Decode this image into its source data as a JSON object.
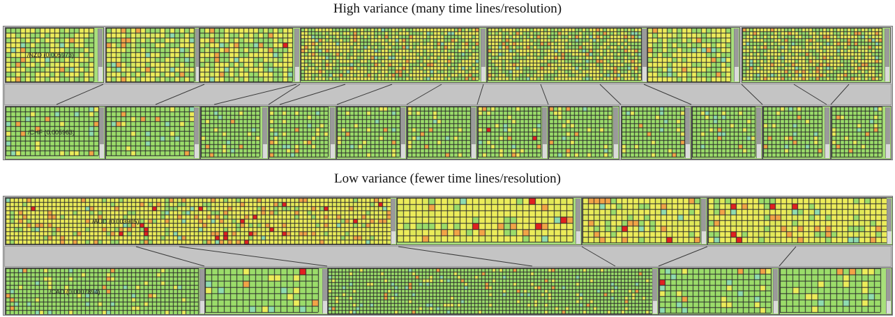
{
  "sections": [
    {
      "title": "High variance (many time lines/resolution)",
      "top_panels": [
        {
          "label": "/NZD (0.005973)",
          "palette": "high"
        },
        {
          "label": "",
          "palette": "high"
        },
        {
          "label": "",
          "palette": "high",
          "hot_cells": 1
        },
        {
          "label": "",
          "palette": "high"
        },
        {
          "label": "",
          "palette": "high"
        },
        {
          "label": "",
          "palette": "high"
        },
        {
          "label": "",
          "palette": "high"
        }
      ],
      "bottom_panels": [
        {
          "label": "/CHF (0.005963)",
          "palette": "low"
        },
        {
          "label": "",
          "palette": "low"
        },
        {
          "label": "",
          "palette": "low"
        },
        {
          "label": "",
          "palette": "low"
        },
        {
          "label": "",
          "palette": "low"
        },
        {
          "label": "",
          "palette": "low"
        },
        {
          "label": "",
          "palette": "low",
          "hot_cells": 2
        },
        {
          "label": "",
          "palette": "low"
        },
        {
          "label": "",
          "palette": "low"
        },
        {
          "label": "",
          "palette": "low"
        },
        {
          "label": "",
          "palette": "low"
        },
        {
          "label": "",
          "palette": "low"
        }
      ]
    },
    {
      "title": "Low variance (fewer time lines/resolution)",
      "top_panels": [
        {
          "label": "/AUD (0.003905)",
          "palette": "veryhigh"
        },
        {
          "label": "",
          "palette": "veryhigh"
        },
        {
          "label": "",
          "palette": "veryhigh"
        },
        {
          "label": "",
          "palette": "veryhigh"
        }
      ],
      "bottom_panels": [
        {
          "label": "/CAD (0.0007894)",
          "palette": "low"
        },
        {
          "label": "",
          "palette": "low",
          "hot_cells": 1
        },
        {
          "label": "",
          "palette": "low"
        },
        {
          "label": "",
          "palette": "low",
          "hot_cells": 1
        },
        {
          "label": "",
          "palette": "low"
        }
      ]
    }
  ],
  "colors": {
    "frame": "#c4c4c4",
    "grid": "#2a2a2a",
    "green": "#9bdc6a",
    "yellow": "#ecec5a",
    "orange": "#f2a447",
    "red": "#e02020",
    "cyan": "#8fdcb0"
  }
}
